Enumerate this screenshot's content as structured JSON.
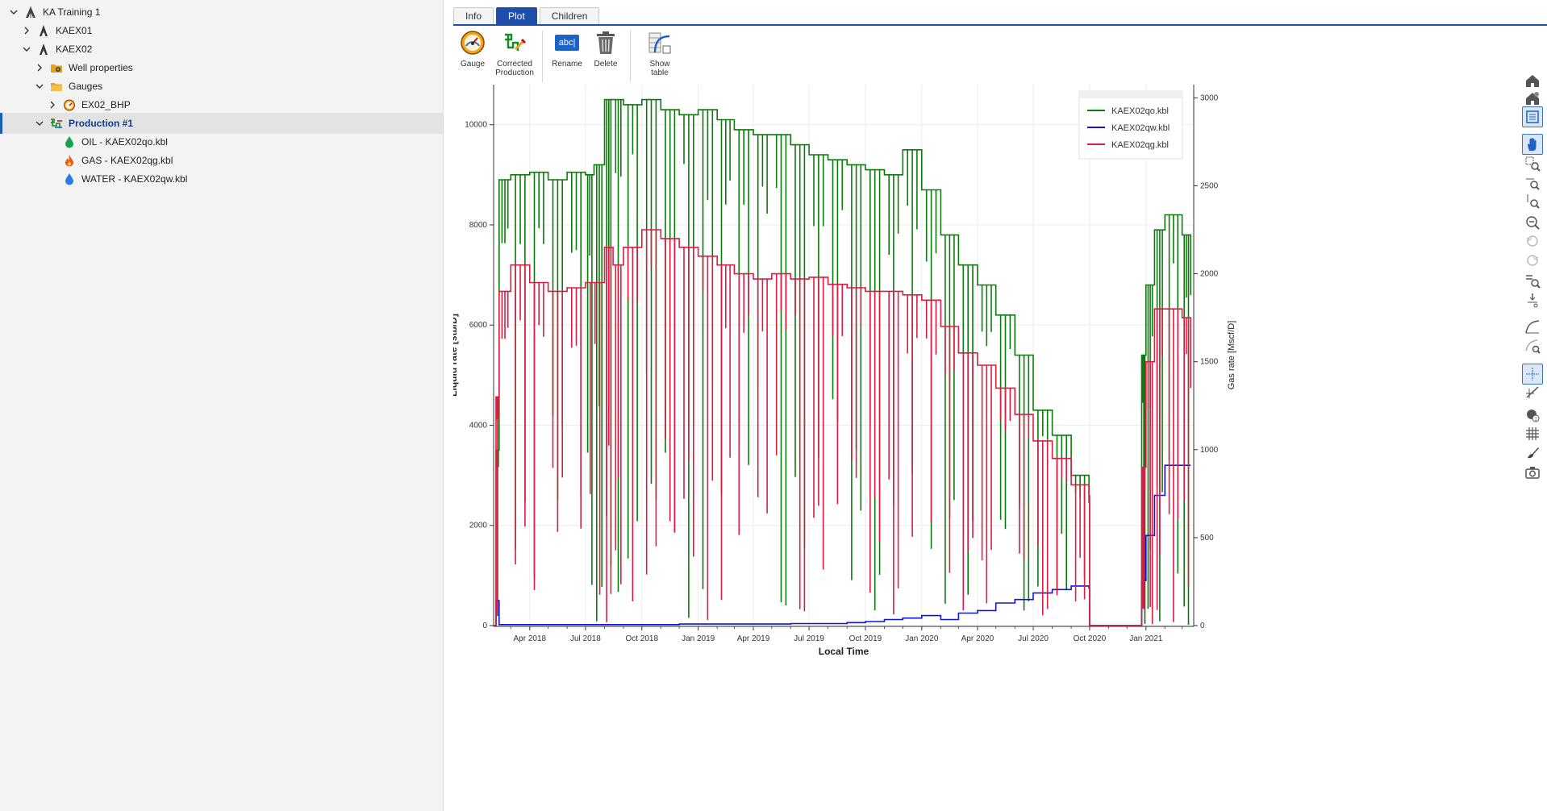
{
  "tree": {
    "items": [
      {
        "label": "KA Training 1",
        "level": 0,
        "chevron": "down",
        "icon": "project-icon"
      },
      {
        "label": "KAEX01",
        "level": 1,
        "chevron": "right",
        "icon": "well-icon"
      },
      {
        "label": "KAEX02",
        "level": 1,
        "chevron": "down",
        "icon": "well-icon"
      },
      {
        "label": "Well properties",
        "level": 2,
        "chevron": "right",
        "icon": "properties-folder-icon"
      },
      {
        "label": "Gauges",
        "level": 2,
        "chevron": "down",
        "icon": "folder-icon"
      },
      {
        "label": "EX02_BHP",
        "level": 3,
        "chevron": "right",
        "icon": "gauge-icon"
      },
      {
        "label": "Production #1",
        "level": 2,
        "chevron": "down",
        "icon": "production-icon",
        "selected": true
      },
      {
        "label": "OIL - KAEX02qo.kbl",
        "level": 3,
        "chevron": "none",
        "icon": "oil-drop-icon"
      },
      {
        "label": "GAS - KAEX02qg.kbl",
        "level": 3,
        "chevron": "none",
        "icon": "gas-flame-icon"
      },
      {
        "label": "WATER - KAEX02qw.kbl",
        "level": 3,
        "chevron": "none",
        "icon": "water-drop-icon"
      }
    ]
  },
  "tabs": {
    "info": "Info",
    "plot": "Plot",
    "children": "Children"
  },
  "toolbar": {
    "gauge": "Gauge",
    "corrected_production_line1": "Corrected",
    "corrected_production_line2": "Production",
    "rename": "Rename",
    "rename_icon_text": "abc|",
    "delete": "Delete",
    "show_table": "Show table"
  },
  "chart_data": {
    "type": "line",
    "xlabel": "Local Time",
    "ylabel": "Liquid rate [stb/D]",
    "y2label": "Gas rate [Mscf/D]",
    "x_ticks": [
      "Apr 2018",
      "Jul 2018",
      "Oct 2018",
      "Jan 2019",
      "Apr 2019",
      "Jul 2019",
      "Oct 2019",
      "Jan 2020",
      "Apr 2020",
      "Jul 2020",
      "Oct 2020",
      "Jan 2021"
    ],
    "x_range": [
      "2018-02-01",
      "2021-03-20"
    ],
    "ylim": [
      0,
      10800
    ],
    "y_ticks": [
      0,
      2000,
      4000,
      6000,
      8000,
      10000
    ],
    "y2lim": [
      0,
      3075
    ],
    "y2_ticks": [
      0,
      500,
      1000,
      1500,
      2000,
      2500,
      3000
    ],
    "grid": true,
    "legend_position": "top-right",
    "series": [
      {
        "name": "KAEX02qo.kbl",
        "axis": "left",
        "color": "#0d7a0d",
        "x": [
          "2018-02-01",
          "2018-02-05",
          "2018-02-10",
          "2018-03-01",
          "2018-04-01",
          "2018-05-01",
          "2018-06-01",
          "2018-07-01",
          "2018-07-15",
          "2018-08-01",
          "2018-08-15",
          "2018-09-01",
          "2018-10-01",
          "2018-11-01",
          "2018-12-01",
          "2019-01-01",
          "2019-02-01",
          "2019-03-01",
          "2019-04-01",
          "2019-05-01",
          "2019-06-01",
          "2019-07-01",
          "2019-08-01",
          "2019-09-01",
          "2019-10-01",
          "2019-11-01",
          "2019-12-01",
          "2020-01-01",
          "2020-02-01",
          "2020-03-01",
          "2020-04-01",
          "2020-05-01",
          "2020-06-01",
          "2020-07-01",
          "2020-08-01",
          "2020-09-01",
          "2020-09-30",
          "2020-10-01",
          "2020-12-10",
          "2020-12-25",
          "2021-01-01",
          "2021-01-15",
          "2021-02-01",
          "2021-03-01",
          "2021-03-15"
        ],
        "y": [
          0,
          3500,
          8900,
          9000,
          9050,
          8900,
          9050,
          9000,
          9200,
          10500,
          10500,
          10400,
          10500,
          10300,
          10200,
          10300,
          10100,
          9900,
          9800,
          9800,
          9600,
          9400,
          9300,
          9200,
          9100,
          9000,
          9500,
          8700,
          7800,
          7200,
          6800,
          6200,
          5400,
          4300,
          3800,
          3000,
          2600,
          0,
          0,
          5400,
          6800,
          7900,
          8200,
          7800,
          6600
        ]
      },
      {
        "name": "KAEX02qw.kbl",
        "axis": "left",
        "color": "#1414d2",
        "x": [
          "2018-02-01",
          "2018-02-05",
          "2018-02-10",
          "2018-03-01",
          "2018-06-01",
          "2018-09-01",
          "2018-12-01",
          "2019-03-01",
          "2019-06-01",
          "2019-09-01",
          "2019-10-01",
          "2019-11-01",
          "2019-12-01",
          "2020-01-01",
          "2020-02-01",
          "2020-03-01",
          "2020-04-01",
          "2020-05-01",
          "2020-06-01",
          "2020-07-01",
          "2020-08-01",
          "2020-09-01",
          "2020-09-30",
          "2020-10-01",
          "2020-12-10",
          "2020-12-25",
          "2021-01-01",
          "2021-01-15",
          "2021-02-01",
          "2021-03-01",
          "2021-03-15"
        ],
        "y": [
          0,
          500,
          20,
          20,
          20,
          20,
          30,
          30,
          40,
          60,
          80,
          120,
          150,
          200,
          120,
          250,
          300,
          450,
          520,
          650,
          720,
          790,
          750,
          0,
          0,
          900,
          1800,
          2600,
          3200,
          3200,
          3200
        ]
      },
      {
        "name": "KAEX02qg.kbl",
        "axis": "right",
        "color": "#d81e44",
        "x": [
          "2018-02-01",
          "2018-02-05",
          "2018-02-10",
          "2018-03-01",
          "2018-04-01",
          "2018-05-01",
          "2018-06-01",
          "2018-07-01",
          "2018-08-01",
          "2018-08-15",
          "2018-09-01",
          "2018-10-01",
          "2018-11-01",
          "2018-12-01",
          "2019-01-01",
          "2019-02-01",
          "2019-03-01",
          "2019-04-01",
          "2019-05-01",
          "2019-06-01",
          "2019-07-01",
          "2019-08-01",
          "2019-09-01",
          "2019-10-01",
          "2019-11-01",
          "2019-12-01",
          "2020-01-01",
          "2020-02-01",
          "2020-03-01",
          "2020-04-01",
          "2020-05-01",
          "2020-06-01",
          "2020-07-01",
          "2020-08-01",
          "2020-09-01",
          "2020-09-30",
          "2020-10-01",
          "2020-12-10",
          "2020-12-25",
          "2021-01-01",
          "2021-01-15",
          "2021-02-01",
          "2021-03-01",
          "2021-03-15"
        ],
        "y": [
          0,
          1300,
          1900,
          2050,
          1950,
          1900,
          1920,
          1950,
          2150,
          2050,
          2150,
          2250,
          2200,
          2150,
          2100,
          2050,
          2000,
          1970,
          2000,
          1970,
          1980,
          1940,
          1920,
          1900,
          1900,
          1880,
          1850,
          1700,
          1550,
          1480,
          1350,
          1200,
          1050,
          950,
          800,
          700,
          0,
          0,
          900,
          1500,
          1800,
          1800,
          1750,
          1350
        ]
      }
    ]
  },
  "tools": [
    "home-icon",
    "home-reset-icon",
    "legend-panel-icon",
    "pan-hand-icon",
    "box-zoom-icon",
    "zoom-x-icon",
    "zoom-y-icon",
    "zoom-out-icon",
    "undo-zoom-icon",
    "redo-zoom-icon",
    "legend-zoom-icon",
    "reset-scale-icon",
    "curve-icon",
    "curve-zoom-icon",
    "crosshair-icon",
    "slope-icon",
    "annotate-icon",
    "grid-icon",
    "brush-icon",
    "camera-icon"
  ]
}
